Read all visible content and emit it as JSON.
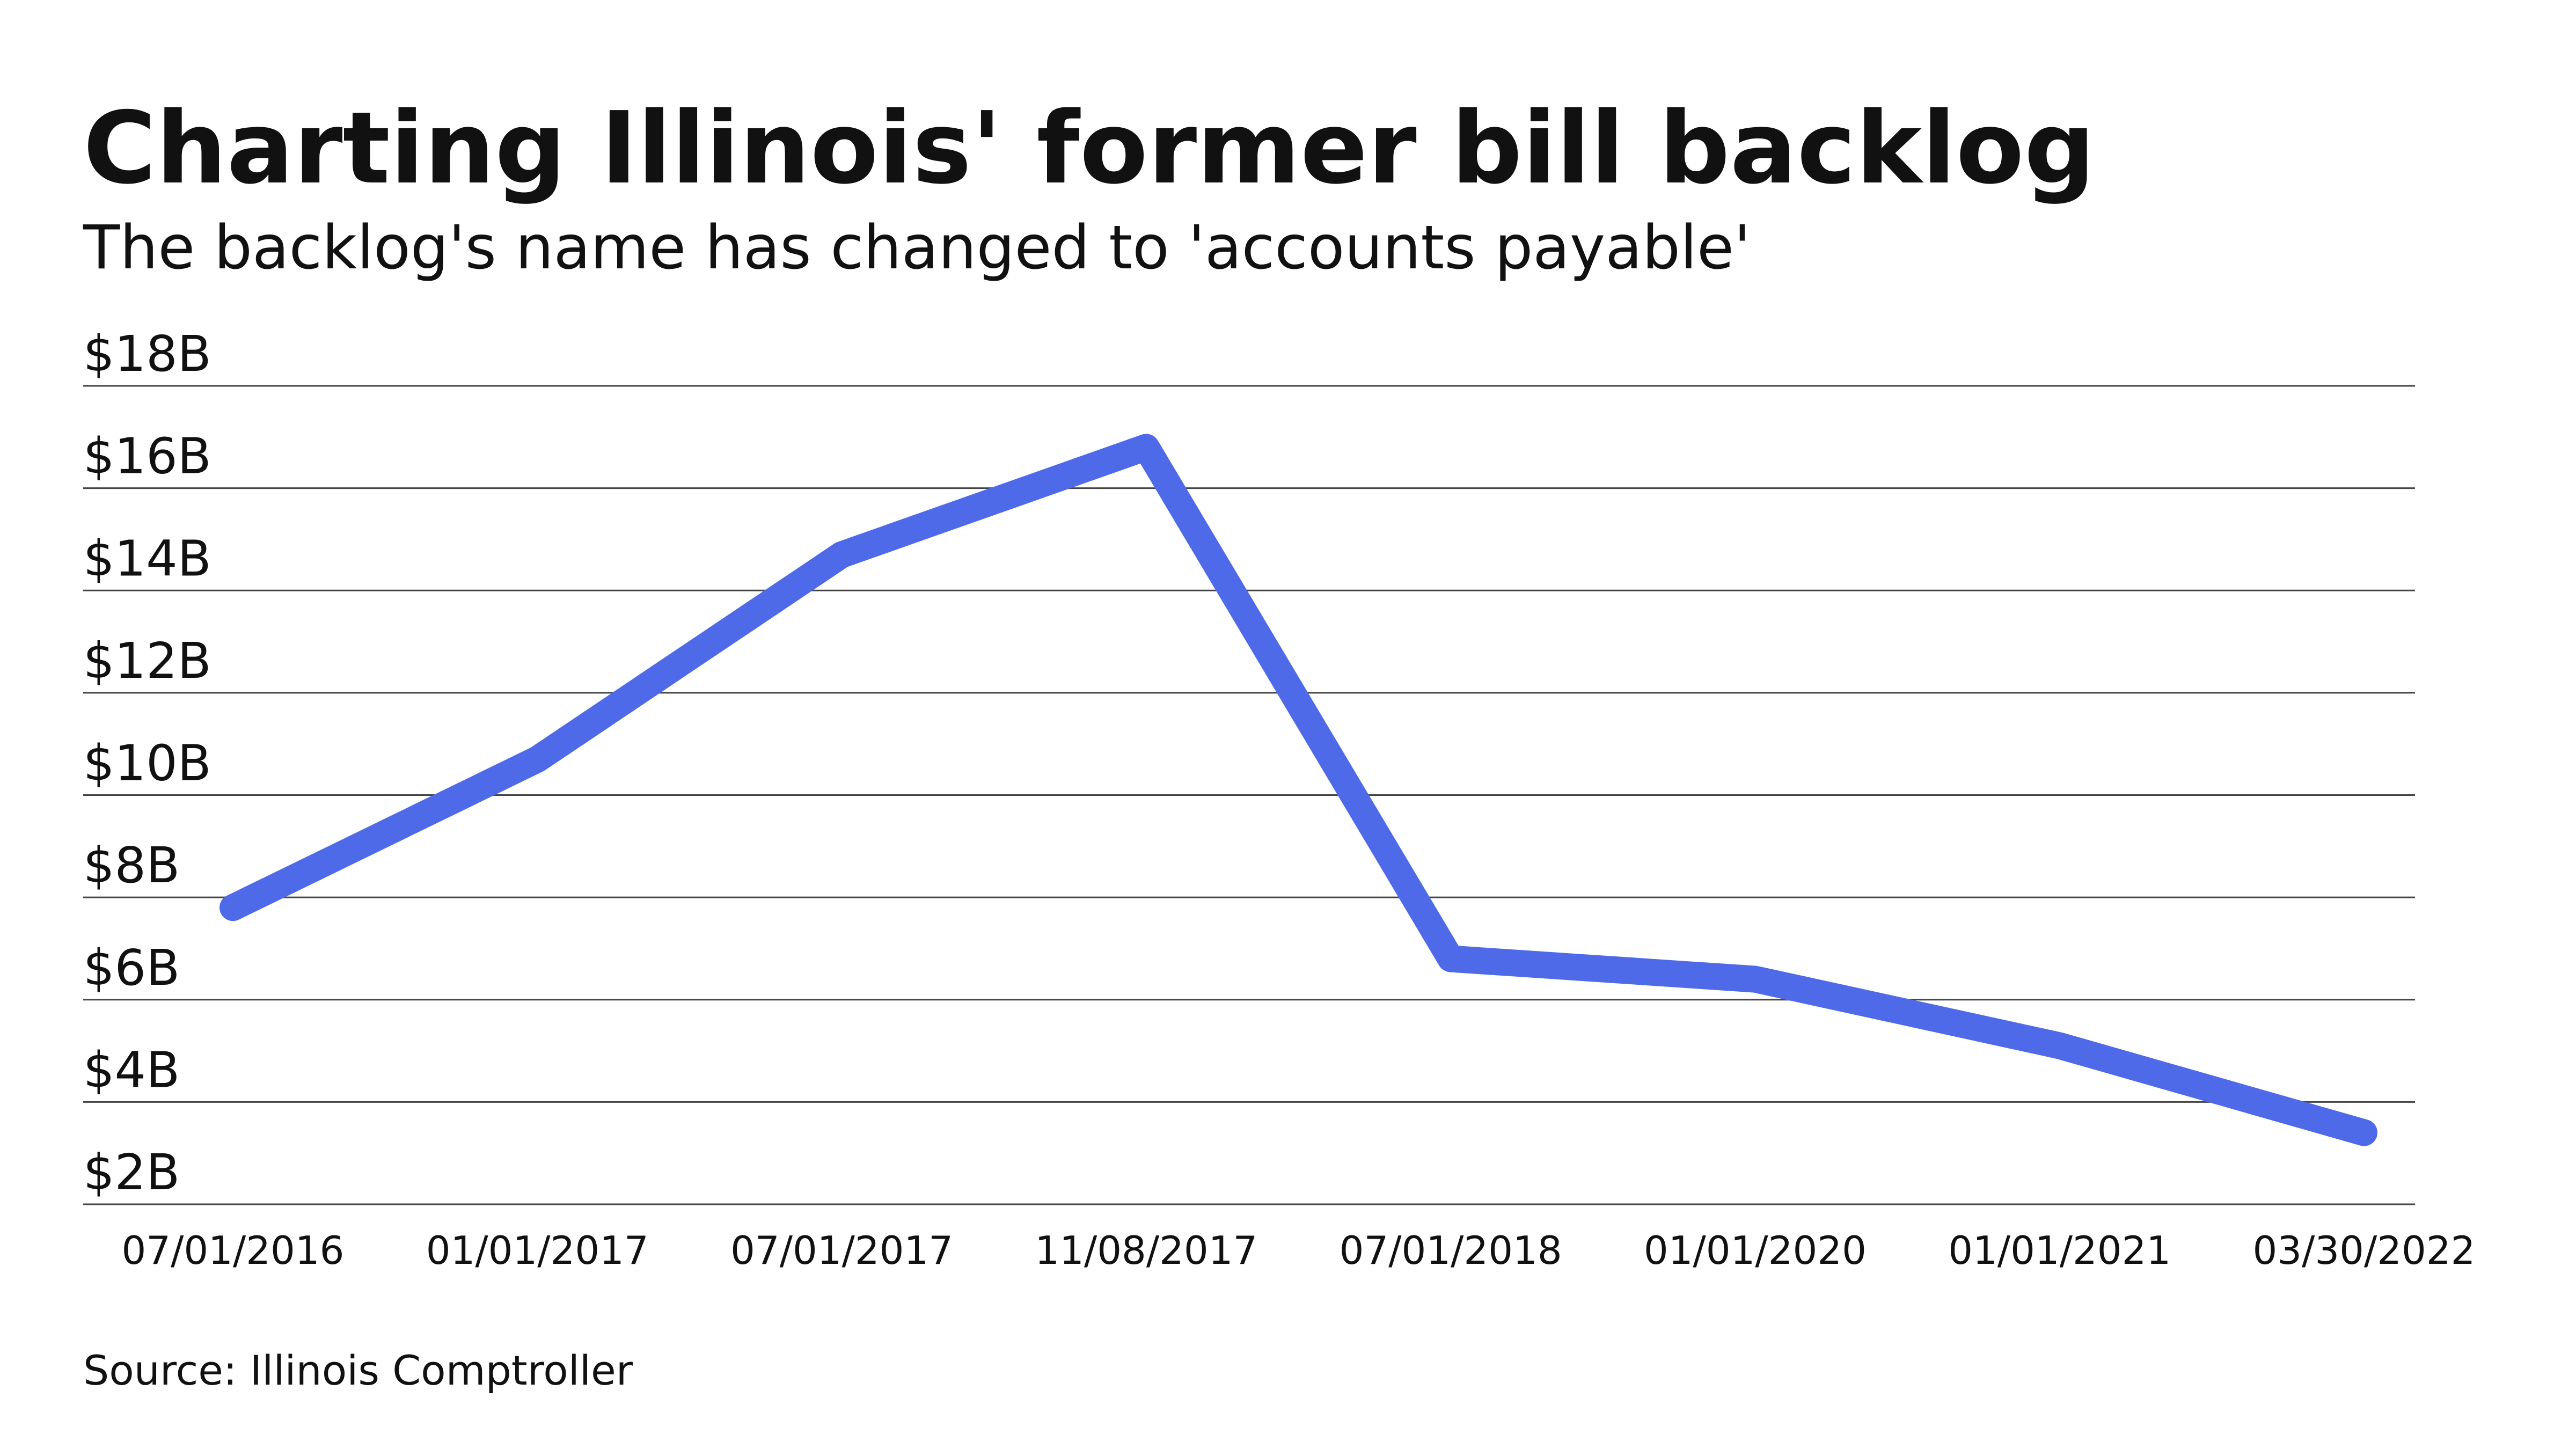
{
  "chart_data": {
    "type": "line",
    "title": "Charting Illinois' former bill backlog",
    "subtitle": "The backlog's name has changed to 'accounts payable'",
    "source": "Source: Illinois Comptroller",
    "categories": [
      "07/01/2016",
      "01/01/2017",
      "07/01/2017",
      "11/08/2017",
      "07/01/2018",
      "01/01/2020",
      "01/01/2021",
      "03/30/2022"
    ],
    "values": [
      7.8,
      10.7,
      14.7,
      16.8,
      6.8,
      6.4,
      5.1,
      3.4
    ],
    "color": "#4f6ae8",
    "ylim": [
      2,
      18
    ],
    "yticks": [
      {
        "value": 2,
        "label": "$2B"
      },
      {
        "value": 4,
        "label": "$4B"
      },
      {
        "value": 6,
        "label": "$6B"
      },
      {
        "value": 8,
        "label": "$8B"
      },
      {
        "value": 10,
        "label": "$10B"
      },
      {
        "value": 12,
        "label": "$12B"
      },
      {
        "value": 14,
        "label": "$14B"
      },
      {
        "value": 16,
        "label": "$16B"
      },
      {
        "value": 18,
        "label": "$18B"
      }
    ],
    "grid": true
  }
}
